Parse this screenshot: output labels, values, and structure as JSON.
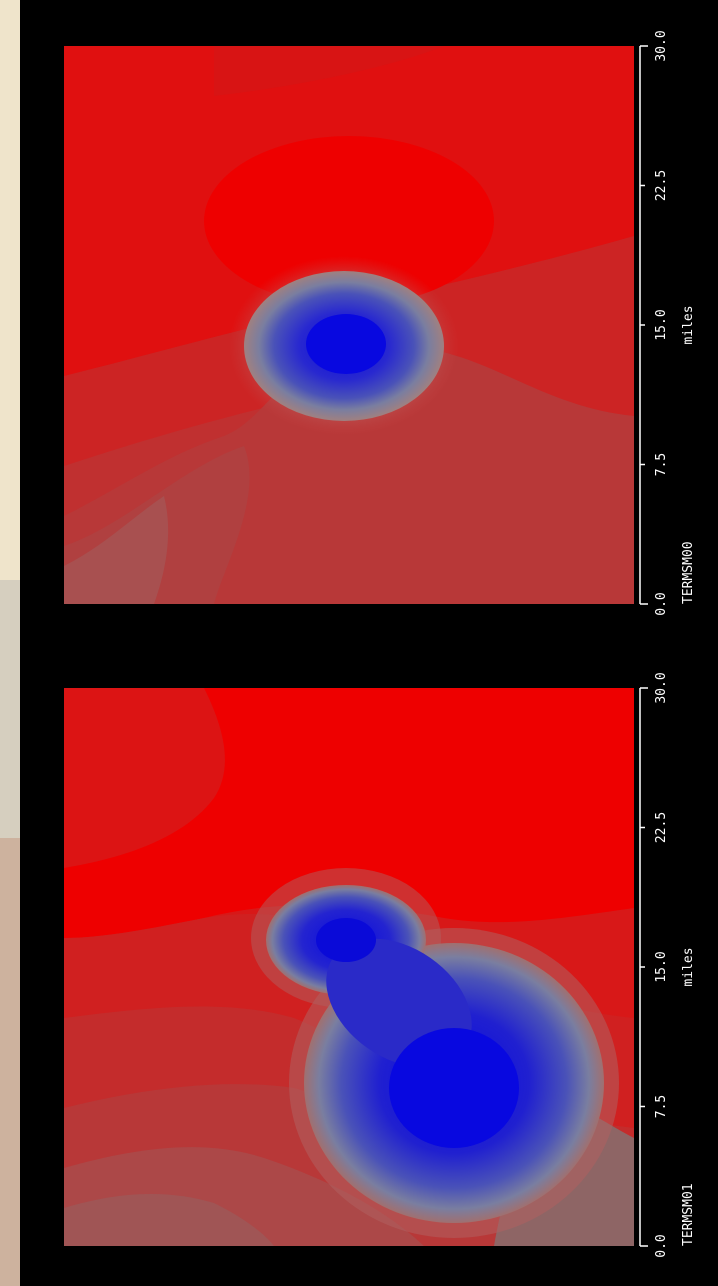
{
  "chart_data": [
    {
      "type": "heatmap",
      "title": "TERMSM00",
      "xlabel": "miles",
      "ylabel": "",
      "xlim": [
        0.0,
        30.0
      ],
      "x_ticks": [
        "0.0",
        "7.5",
        "15.0",
        "22.5",
        "30.0"
      ],
      "x_tick_values": [
        0.0,
        7.5,
        15.0,
        22.5,
        30.0
      ],
      "colors": {
        "high": "#ee0000",
        "mid": "#c83030",
        "low": "#1414e0",
        "neutral": "#8a7070"
      }
    },
    {
      "type": "heatmap",
      "title": "TERMSM01",
      "xlabel": "miles",
      "ylabel": "",
      "xlim": [
        0.0,
        30.0
      ],
      "x_ticks": [
        "0.0",
        "7.5",
        "15.0",
        "22.5",
        "30.0"
      ],
      "x_tick_values": [
        0.0,
        7.5,
        15.0,
        22.5,
        30.0
      ],
      "colors": {
        "high": "#ee0000",
        "mid": "#c83030",
        "low": "#1414e0",
        "neutral": "#8a7070"
      }
    }
  ]
}
